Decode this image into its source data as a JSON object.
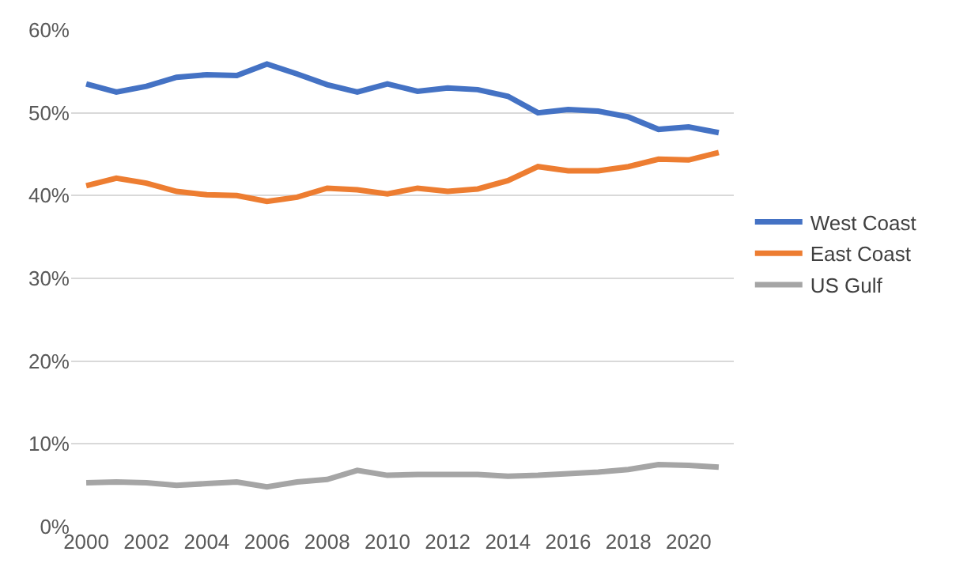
{
  "chart_data": {
    "type": "line",
    "x": [
      2000,
      2001,
      2002,
      2003,
      2004,
      2005,
      2006,
      2007,
      2008,
      2009,
      2010,
      2011,
      2012,
      2013,
      2014,
      2015,
      2016,
      2017,
      2018,
      2019,
      2020,
      2021
    ],
    "series": [
      {
        "name": "West Coast",
        "color": "#4472c4",
        "values": [
          53.5,
          52.5,
          53.2,
          54.3,
          54.6,
          54.5,
          55.9,
          54.7,
          53.4,
          52.5,
          53.5,
          52.6,
          53.0,
          52.8,
          52.0,
          50.0,
          50.4,
          50.2,
          49.5,
          48.0,
          48.3,
          47.6
        ]
      },
      {
        "name": "East Coast",
        "color": "#ed7d31",
        "values": [
          41.2,
          42.1,
          41.5,
          40.5,
          40.1,
          40.0,
          39.3,
          39.8,
          40.9,
          40.7,
          40.2,
          40.9,
          40.5,
          40.8,
          41.8,
          43.5,
          43.0,
          43.0,
          43.5,
          44.4,
          44.3,
          45.2
        ]
      },
      {
        "name": "US Gulf",
        "color": "#a5a5a5",
        "values": [
          5.3,
          5.4,
          5.3,
          5.0,
          5.2,
          5.4,
          4.8,
          5.4,
          5.7,
          6.8,
          6.2,
          6.3,
          6.3,
          6.3,
          6.1,
          6.2,
          6.4,
          6.6,
          6.9,
          7.5,
          7.4,
          7.2
        ]
      }
    ],
    "xlim": [
      1999.5,
      2021.5
    ],
    "xticks": [
      2000,
      2002,
      2004,
      2006,
      2008,
      2010,
      2012,
      2014,
      2016,
      2018,
      2020
    ],
    "ylim": [
      0,
      60
    ],
    "yticks": [
      {
        "value": 0,
        "label": "0%"
      },
      {
        "value": 10,
        "label": "10%"
      },
      {
        "value": 20,
        "label": "20%"
      },
      {
        "value": 30,
        "label": "30%"
      },
      {
        "value": 40,
        "label": "40%"
      },
      {
        "value": 50,
        "label": "50%"
      },
      {
        "value": 60,
        "label": "60%"
      }
    ],
    "grid": "y",
    "legend": "right",
    "marker": "none",
    "line_style": "solid"
  }
}
